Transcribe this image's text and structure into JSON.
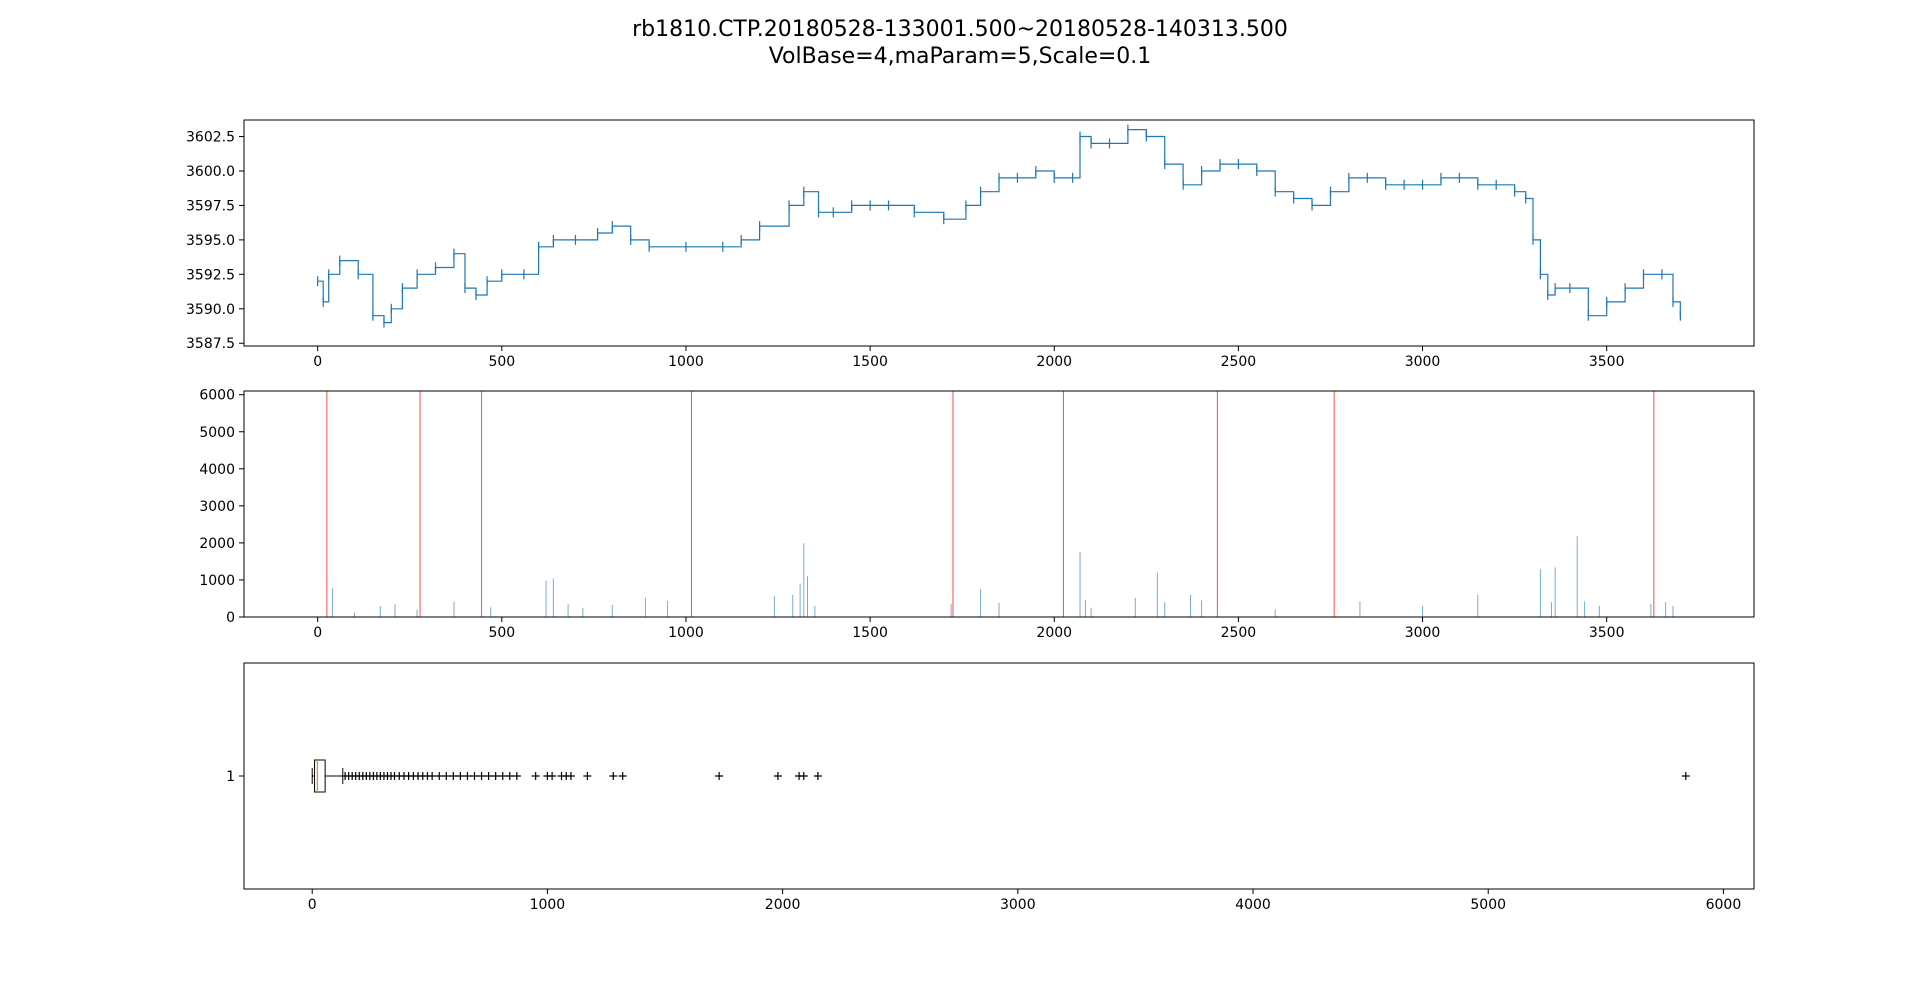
{
  "figure": {
    "title_line1": "rb1810.CTP.20180528-133001.500~20180528-140313.500",
    "title_line2": "VolBase=4,maParam=5,Scale=0.1"
  },
  "colors": {
    "price_line": "#1f77b4",
    "volume_bars": "#1f77b4",
    "marker_lines": "#ff0000",
    "box_median": "#ff7f0e",
    "axes": "#000000"
  },
  "chart_data": [
    {
      "type": "line",
      "panel": "price",
      "title": "",
      "xlabel": "",
      "ylabel": "",
      "xlim": [
        -200,
        3900
      ],
      "ylim": [
        3587.3,
        3603.7
      ],
      "xticks": [
        0,
        500,
        1000,
        1500,
        2000,
        2500,
        3000,
        3500
      ],
      "yticks": [
        3587.5,
        3590.0,
        3592.5,
        3595.0,
        3597.5,
        3600.0,
        3602.5
      ],
      "ytick_labels": [
        "3587.5",
        "3590.0",
        "3592.5",
        "3595.0",
        "3597.5",
        "3600.0",
        "3602.5"
      ],
      "grid": false,
      "series": [
        {
          "x": [
            0,
            15,
            30,
            60,
            110,
            150,
            180,
            200,
            230,
            270,
            320,
            370,
            400,
            430,
            460,
            500,
            560,
            600,
            640,
            700,
            760,
            800,
            850,
            900,
            1000,
            1100,
            1150,
            1200,
            1280,
            1320,
            1360,
            1400,
            1450,
            1500,
            1550,
            1620,
            1700,
            1760,
            1800,
            1850,
            1900,
            1950,
            2000,
            2050,
            2070,
            2100,
            2150,
            2200,
            2250,
            2300,
            2350,
            2400,
            2450,
            2500,
            2550,
            2600,
            2650,
            2700,
            2750,
            2800,
            2850,
            2900,
            2950,
            3000,
            3050,
            3100,
            3150,
            3200,
            3250,
            3280,
            3300,
            3320,
            3340,
            3360,
            3400,
            3450,
            3500,
            3550,
            3600,
            3650,
            3680,
            3700
          ],
          "values": [
            3592.0,
            3590.5,
            3592.5,
            3593.5,
            3592.5,
            3589.5,
            3589.0,
            3590.0,
            3591.5,
            3592.5,
            3593.0,
            3594.0,
            3591.5,
            3591.0,
            3592.0,
            3592.5,
            3592.5,
            3594.5,
            3595.0,
            3595.0,
            3595.5,
            3596.0,
            3595.0,
            3594.5,
            3594.5,
            3594.5,
            3595.0,
            3596.0,
            3597.5,
            3598.5,
            3597.0,
            3597.0,
            3597.5,
            3597.5,
            3597.5,
            3597.0,
            3596.5,
            3597.5,
            3598.5,
            3599.5,
            3599.5,
            3600.0,
            3599.5,
            3599.5,
            3602.5,
            3602.0,
            3602.0,
            3603.0,
            3602.5,
            3600.5,
            3599.0,
            3600.0,
            3600.5,
            3600.5,
            3600.0,
            3598.5,
            3598.0,
            3597.5,
            3598.5,
            3599.5,
            3599.5,
            3599.0,
            3599.0,
            3599.0,
            3599.5,
            3599.5,
            3599.0,
            3599.0,
            3598.5,
            3598.0,
            3595.0,
            3592.5,
            3591.0,
            3591.5,
            3591.5,
            3589.5,
            3590.5,
            3591.5,
            3592.5,
            3592.5,
            3590.5,
            3589.5
          ]
        }
      ]
    },
    {
      "type": "bar",
      "panel": "volume",
      "title": "",
      "xlabel": "",
      "ylabel": "",
      "xlim": [
        -200,
        3900
      ],
      "ylim": [
        0,
        6100
      ],
      "xticks": [
        0,
        500,
        1000,
        1500,
        2000,
        2500,
        3000,
        3500
      ],
      "yticks": [
        0,
        1000,
        2000,
        3000,
        4000,
        5000,
        6000
      ],
      "grid": false,
      "series": [
        {
          "x": [
            40,
            100,
            170,
            210,
            270,
            370,
            470,
            620,
            640,
            680,
            720,
            800,
            890,
            950,
            1240,
            1290,
            1310,
            1320,
            1330,
            1350,
            1720,
            1800,
            1850,
            2070,
            2085,
            2100,
            2220,
            2280,
            2300,
            2370,
            2400,
            2600,
            2830,
            3000,
            3150,
            3320,
            3350,
            3360,
            3420,
            3440,
            3480,
            3620,
            3660,
            3680
          ],
          "values": [
            780,
            120,
            300,
            350,
            200,
            420,
            260,
            980,
            1040,
            350,
            250,
            330,
            520,
            430,
            560,
            600,
            900,
            1990,
            1100,
            300,
            350,
            750,
            380,
            1760,
            450,
            250,
            520,
            1200,
            400,
            600,
            450,
            200,
            420,
            300,
            600,
            1290,
            400,
            1340,
            2180,
            420,
            300,
            350,
            400,
            300
          ]
        }
      ],
      "vertical_markers": [
        25,
        278,
        445,
        1015,
        1725,
        2025,
        2443,
        2760,
        3628
      ]
    },
    {
      "type": "box",
      "panel": "volume-distribution",
      "title": "",
      "xlabel": "",
      "ylabel": "",
      "xlim": [
        -290,
        6130
      ],
      "xticks": [
        0,
        1000,
        2000,
        3000,
        4000,
        5000,
        6000
      ],
      "yticks": [
        1
      ],
      "grid": false,
      "box": {
        "position": 1,
        "whisker_low": 0,
        "q1": 10,
        "median": 22,
        "q3": 55,
        "whisker_high": 130,
        "outliers": [
          140,
          155,
          170,
          185,
          200,
          215,
          230,
          245,
          260,
          275,
          290,
          305,
          320,
          335,
          350,
          370,
          390,
          410,
          430,
          450,
          470,
          490,
          510,
          540,
          570,
          600,
          630,
          660,
          690,
          720,
          750,
          780,
          810,
          840,
          870,
          950,
          1000,
          1020,
          1060,
          1080,
          1100,
          1170,
          1280,
          1320,
          1730,
          1980,
          2070,
          2090,
          2150,
          5840
        ]
      }
    }
  ]
}
